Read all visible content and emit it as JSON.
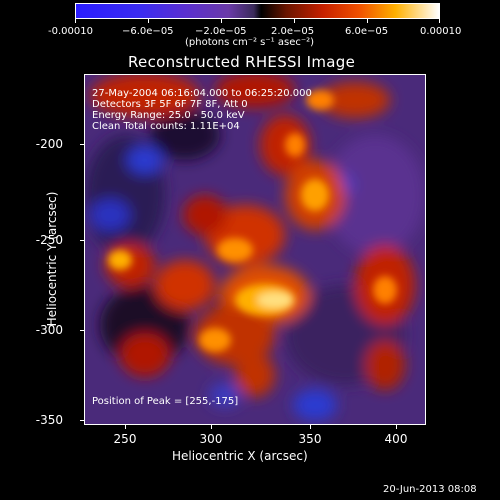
{
  "colorbar": {
    "ticks": [
      "-0.00010",
      "−6.0e−05",
      "−2.0e−05",
      "2.0e−05",
      "6.0e−05",
      "0.00010"
    ],
    "units": "(photons cm⁻² s⁻¹ asec⁻²)"
  },
  "title": "Reconstructed RHESSI Image",
  "annotations": {
    "line1": "27-May-2004 06:16:04.000 to 06:25:20.000",
    "line2": "Detectors 3F 5F 6F 7F 8F, Att 0",
    "line3": "Energy Range: 25.0 - 50.0 keV",
    "line4": "Clean    Total counts: 1.11E+04",
    "peak": "Position of Peak = [255,-175]"
  },
  "axes": {
    "x_title": "Heliocentric X (arcsec)",
    "y_title": "Heliocentric Y (arcsec)",
    "x_ticks": [
      "250",
      "300",
      "350",
      "400"
    ],
    "y_ticks": [
      "-200",
      "-250",
      "-300",
      "-350"
    ]
  },
  "footer": "20-Jun-2013 08:08"
}
